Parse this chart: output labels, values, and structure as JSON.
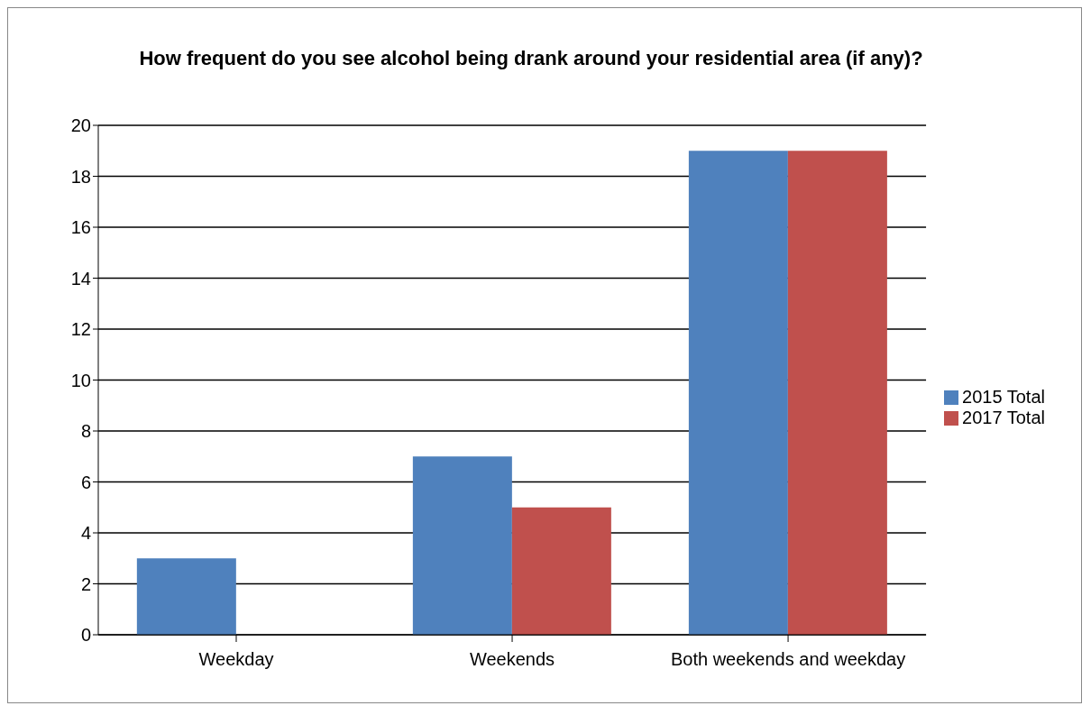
{
  "chart_data": {
    "type": "bar",
    "title": "How frequent do you see alcohol being drank around your residential area (if any)?",
    "categories": [
      "Weekday",
      "Weekends",
      "Both weekends and weekday"
    ],
    "series": [
      {
        "name": "2015 Total",
        "color": "#4f81bd",
        "values": [
          3,
          7,
          19
        ]
      },
      {
        "name": "2017 Total",
        "color": "#c0504d",
        "values": [
          null,
          5,
          19
        ]
      }
    ],
    "ylim": [
      0,
      20
    ],
    "yticks": [
      0,
      2,
      4,
      6,
      8,
      10,
      12,
      14,
      16,
      18,
      20
    ],
    "grid": "y",
    "legend": "right"
  }
}
